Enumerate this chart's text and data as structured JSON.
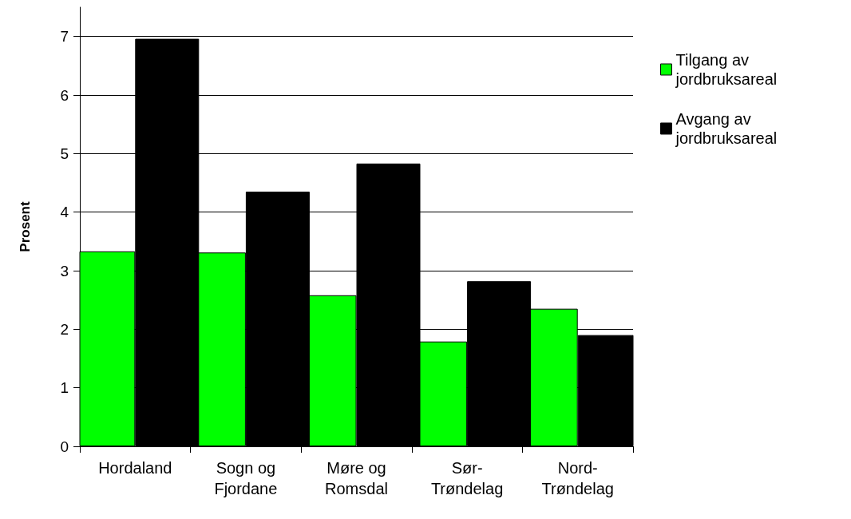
{
  "chart_data": {
    "type": "bar",
    "ylabel": "Prosent",
    "categories": [
      "Hordaland",
      "Sogn og\nFjordane",
      "Møre og\nRomsdal",
      "Sør-\nTrøndelag",
      "Nord-\nTrøndelag"
    ],
    "series": [
      {
        "name": "Tilgang av\njordbruksareal",
        "color": "#00ff00",
        "values": [
          3.33,
          3.31,
          2.58,
          1.79,
          2.35
        ]
      },
      {
        "name": "Avgang av\njordbruksareal",
        "color": "#000000",
        "values": [
          6.96,
          4.35,
          4.83,
          2.82,
          1.9
        ]
      }
    ],
    "ylim": [
      0,
      7.5
    ],
    "yticks": [
      0,
      1,
      2,
      3,
      4,
      5,
      6,
      7
    ],
    "grid": "y",
    "legend": "top right"
  }
}
